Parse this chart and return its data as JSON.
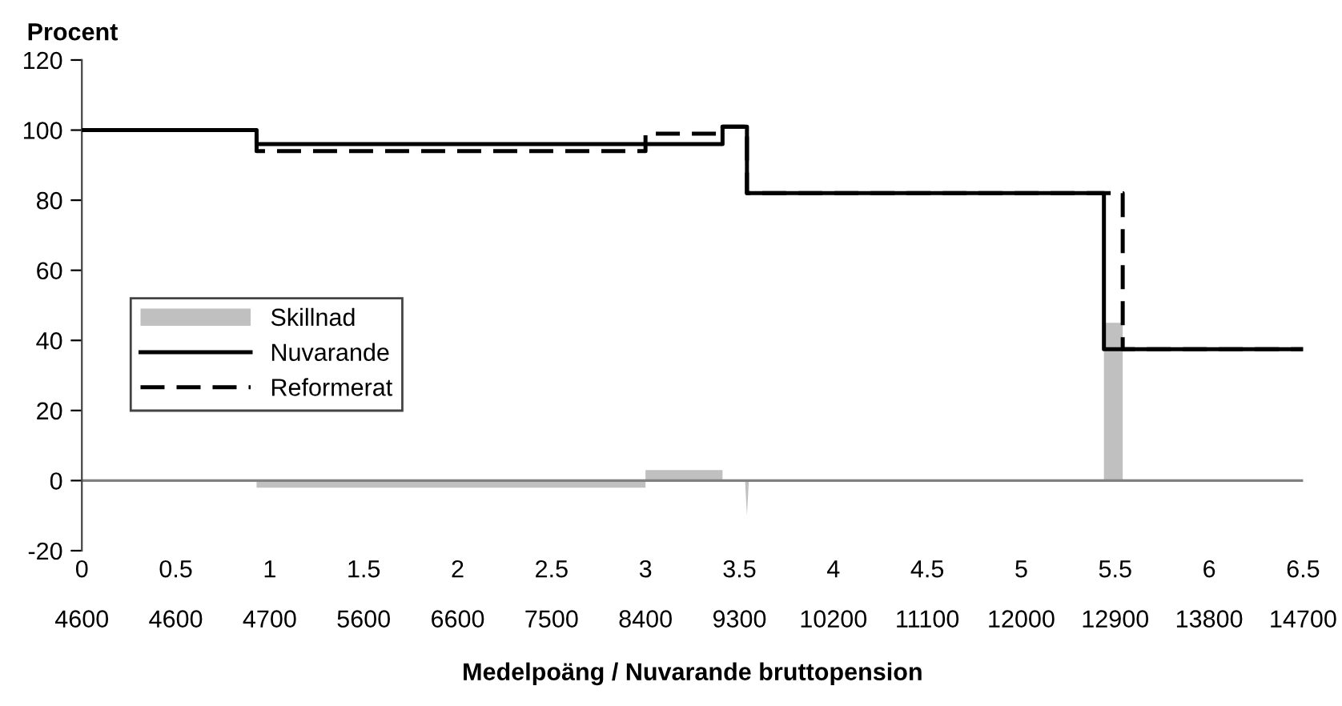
{
  "chart_data": {
    "type": "step",
    "ylabel": "Procent",
    "xlabel": "Medelpoäng / Nuvarande bruttopension",
    "xlim": [
      0,
      6.5
    ],
    "ylim": [
      -20,
      120
    ],
    "xticks": [
      0,
      0.5,
      1,
      1.5,
      2,
      2.5,
      3,
      3.5,
      4,
      4.5,
      5,
      5.5,
      6,
      6.5
    ],
    "annotations": [
      "4600",
      "4600",
      "4700",
      "5600",
      "6600",
      "7500",
      "8400",
      "9300",
      "10200",
      "11100",
      "12000",
      "12900",
      "13800",
      "14700"
    ],
    "yticks": [
      -20,
      0,
      20,
      40,
      60,
      80,
      100,
      120
    ],
    "ref_lines": [
      {
        "axis": "y",
        "value": 0,
        "label": null,
        "color": "#808080"
      }
    ],
    "series": [
      {
        "name": "Skillnad",
        "type": "area",
        "color": "#c0c0c0",
        "x": [
          0,
          0.93,
          0.93,
          3.0,
          3.0,
          3.41,
          3.41,
          3.53,
          3.54,
          3.55,
          5.44,
          5.44,
          5.54,
          5.54,
          6.5
        ],
        "values": [
          0,
          0,
          -2,
          -2,
          3,
          3,
          0,
          0,
          -10,
          0,
          0,
          45,
          45,
          0,
          0
        ]
      },
      {
        "name": "Nuvarande",
        "color": "#000000",
        "line_style": "solid",
        "x": [
          0,
          0.93,
          3.41,
          3.54,
          5.44,
          6.5
        ],
        "values": [
          100,
          96,
          101,
          82,
          37.5,
          37.5
        ]
      },
      {
        "name": "Reformerat",
        "color": "#000000",
        "line_style": "dashed",
        "x": [
          0,
          0.93,
          3.0,
          3.41,
          3.54,
          5.54,
          6.5
        ],
        "values": [
          100,
          94,
          99,
          101,
          82,
          37.5,
          37.5
        ]
      }
    ],
    "legend": "center left",
    "grid": false
  }
}
